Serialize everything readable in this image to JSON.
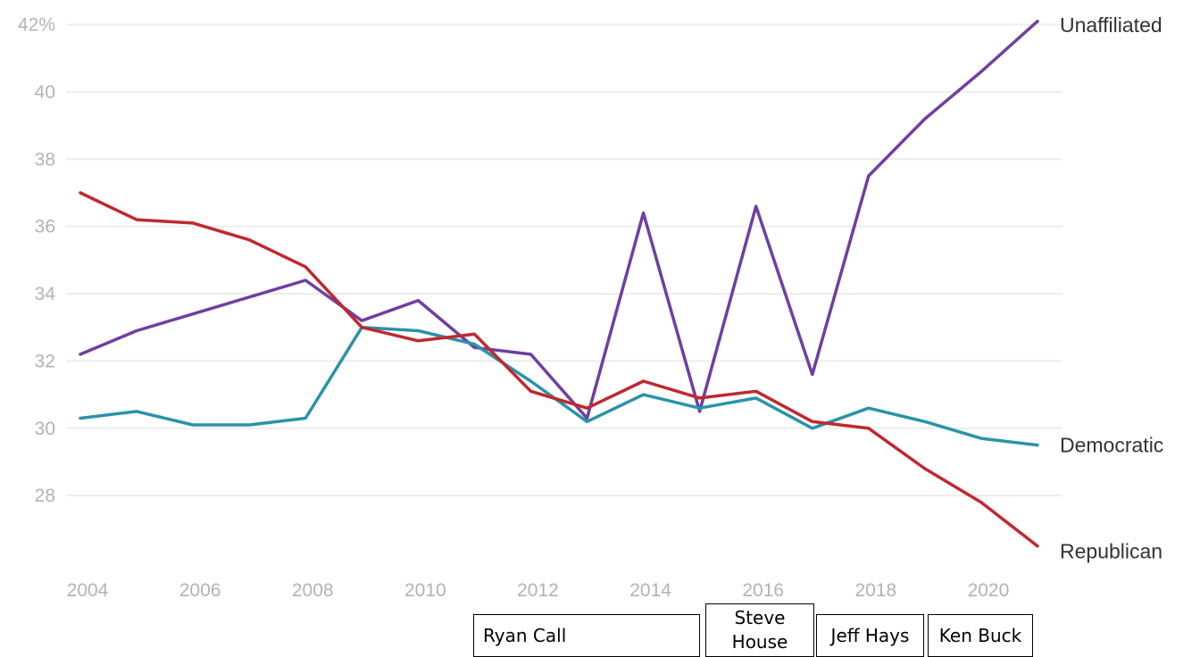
{
  "chart_data": {
    "type": "line",
    "title": "",
    "xlabel": "",
    "ylabel": "",
    "x": [
      2004,
      2005,
      2006,
      2007,
      2008,
      2009,
      2010,
      2011,
      2012,
      2013,
      2014,
      2015,
      2016,
      2017,
      2018,
      2019,
      2020,
      2021
    ],
    "xlim": [
      2004,
      2021
    ],
    "ylim": [
      26.2,
      42.2
    ],
    "x_ticks": [
      "2004",
      "2006",
      "2008",
      "2010",
      "2012",
      "2014",
      "2016",
      "2018",
      "2020"
    ],
    "x_tick_values": [
      2004,
      2006,
      2008,
      2010,
      2012,
      2014,
      2016,
      2018,
      2020
    ],
    "y_ticks": [
      "28",
      "30",
      "32",
      "34",
      "36",
      "38",
      "40",
      "42%"
    ],
    "y_tick_values": [
      28,
      30,
      32,
      34,
      36,
      38,
      40,
      42
    ],
    "grid": "horizontal",
    "legend": "direct labels at line ends, right",
    "series": [
      {
        "name": "Unaffiliated",
        "color": "#6f3fa0",
        "values": [
          32.2,
          32.9,
          33.4,
          33.9,
          34.4,
          33.2,
          33.8,
          32.4,
          32.2,
          30.3,
          36.4,
          30.5,
          36.6,
          31.6,
          37.5,
          39.2,
          40.6,
          42.1
        ]
      },
      {
        "name": "Democratic",
        "color": "#2a93a8",
        "values": [
          30.3,
          30.5,
          30.1,
          30.1,
          30.3,
          33.0,
          32.9,
          32.5,
          31.4,
          30.2,
          31.0,
          30.6,
          30.9,
          30.0,
          30.6,
          30.2,
          29.7,
          29.5
        ]
      },
      {
        "name": "Republican",
        "color": "#c0282f",
        "values": [
          37.0,
          36.2,
          36.1,
          35.6,
          34.8,
          33.0,
          32.6,
          32.8,
          31.1,
          30.6,
          31.4,
          30.9,
          31.1,
          30.2,
          30.0,
          28.8,
          27.8,
          26.5
        ]
      }
    ],
    "annotations": [
      {
        "label": "Ryan Call",
        "from": 2011,
        "to": 2015
      },
      {
        "label": "Steve House",
        "from": 2015,
        "to": 2017
      },
      {
        "label": "Jeff Hays",
        "from": 2017,
        "to": 2019
      },
      {
        "label": "Ken Buck",
        "from": 2019,
        "to": 2021
      }
    ]
  }
}
